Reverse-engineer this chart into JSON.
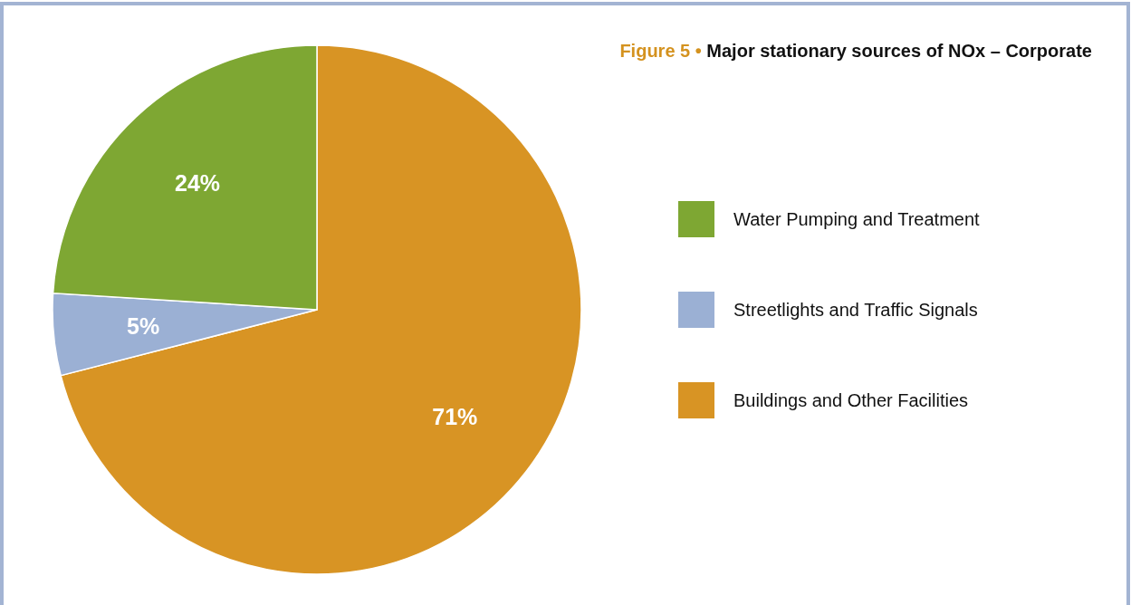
{
  "chart_data": {
    "type": "pie",
    "title": "Figure 5 • Major stationary sources of NOx – Corporate",
    "categories": [
      "Water Pumping and Treatment",
      "Streetlights and Traffic Signals",
      "Buildings and Other Facilities"
    ],
    "values": [
      24,
      5,
      71
    ],
    "colors": [
      "#7ea733",
      "#9bb0d4",
      "#d89424"
    ],
    "value_labels": [
      "24%",
      "5%",
      "71%"
    ],
    "legend": "right"
  }
}
